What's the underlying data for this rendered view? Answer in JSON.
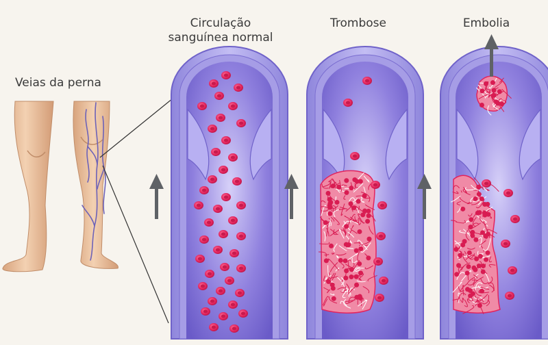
{
  "labels": {
    "legs": "Veias da perna",
    "normal_line1": "Circulação",
    "normal_line2": "sanguínea normal",
    "thrombosis": "Trombose",
    "embolism": "Embolia"
  },
  "colors": {
    "background": "#f7f4ee",
    "vessel_wall": "#a9a2e6",
    "vessel_wall_dark": "#6f62c9",
    "lumen": "#7e6fd6",
    "lumen_light": "#d2ccf7",
    "blood_cell": "#e2245e",
    "clot": "#f08aa6",
    "skin": "#edc6a2",
    "skin_shadow": "#d8a47e",
    "vein": "#6d62b8",
    "arrow": "#5f6266"
  },
  "icons": {
    "flow_arrow": "up-arrow-icon",
    "embolus_arrow": "up-arrow-icon"
  }
}
